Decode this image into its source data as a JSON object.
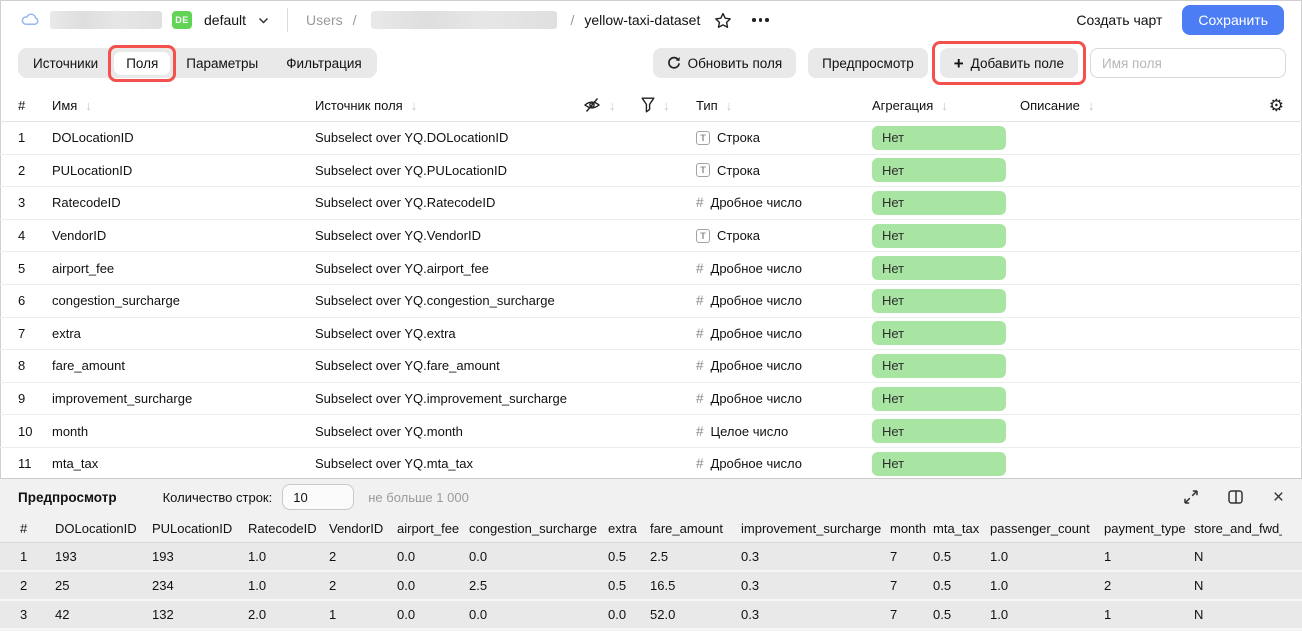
{
  "colors": {
    "accent_blue": "#4c7df5",
    "badge_green": "#a8e5a3",
    "highlight_red": "#f4514e",
    "env_green": "#62d455"
  },
  "header": {
    "env_badge": "DE",
    "env_name": "default",
    "breadcrumb": {
      "root": "Users",
      "sep": "/",
      "current": "yellow-taxi-dataset"
    },
    "create_chart": "Создать чарт",
    "save": "Сохранить"
  },
  "tabs": [
    {
      "label": "Источники",
      "active": false
    },
    {
      "label": "Поля",
      "active": true,
      "highlighted": true
    },
    {
      "label": "Параметры",
      "active": false
    },
    {
      "label": "Фильтрация",
      "active": false
    }
  ],
  "toolbar": {
    "refresh": "Обновить поля",
    "preview": "Предпросмотр",
    "add_field": "Добавить поле",
    "name_placeholder": "Имя поля"
  },
  "fields": {
    "headers": {
      "num": "#",
      "name": "Имя",
      "source": "Источник поля",
      "type": "Тип",
      "aggregation": "Агрегация",
      "description": "Описание"
    },
    "rows": [
      {
        "num": "1",
        "name": "DOLocationID",
        "source": "Subselect over YQ.DOLocationID",
        "type_kind": "string",
        "type": "Строка",
        "aggregation": "Нет"
      },
      {
        "num": "2",
        "name": "PULocationID",
        "source": "Subselect over YQ.PULocationID",
        "type_kind": "string",
        "type": "Строка",
        "aggregation": "Нет"
      },
      {
        "num": "3",
        "name": "RatecodeID",
        "source": "Subselect over YQ.RatecodeID",
        "type_kind": "number",
        "type": "Дробное число",
        "aggregation": "Нет"
      },
      {
        "num": "4",
        "name": "VendorID",
        "source": "Subselect over YQ.VendorID",
        "type_kind": "string",
        "type": "Строка",
        "aggregation": "Нет"
      },
      {
        "num": "5",
        "name": "airport_fee",
        "source": "Subselect over YQ.airport_fee",
        "type_kind": "number",
        "type": "Дробное число",
        "aggregation": "Нет"
      },
      {
        "num": "6",
        "name": "congestion_surcharge",
        "source": "Subselect over YQ.congestion_surcharge",
        "type_kind": "number",
        "type": "Дробное число",
        "aggregation": "Нет"
      },
      {
        "num": "7",
        "name": "extra",
        "source": "Subselect over YQ.extra",
        "type_kind": "number",
        "type": "Дробное число",
        "aggregation": "Нет"
      },
      {
        "num": "8",
        "name": "fare_amount",
        "source": "Subselect over YQ.fare_amount",
        "type_kind": "number",
        "type": "Дробное число",
        "aggregation": "Нет"
      },
      {
        "num": "9",
        "name": "improvement_surcharge",
        "source": "Subselect over YQ.improvement_surcharge",
        "type_kind": "number",
        "type": "Дробное число",
        "aggregation": "Нет"
      },
      {
        "num": "10",
        "name": "month",
        "source": "Subselect over YQ.month",
        "type_kind": "number",
        "type": "Целое число",
        "aggregation": "Нет"
      },
      {
        "num": "11",
        "name": "mta_tax",
        "source": "Subselect over YQ.mta_tax",
        "type_kind": "number",
        "type": "Дробное число",
        "aggregation": "Нет"
      }
    ]
  },
  "preview": {
    "title": "Предпросмотр",
    "rows_label": "Количество строк:",
    "rows_value": "10",
    "hint": "не больше 1 000",
    "table": {
      "headers": [
        "#",
        "DOLocationID",
        "PULocationID",
        "RatecodeID",
        "VendorID",
        "airport_fee",
        "congestion_surcharge",
        "extra",
        "fare_amount",
        "improvement_surcharge",
        "month",
        "mta_tax",
        "passenger_count",
        "payment_type",
        "store_and_fwd_flag"
      ],
      "rows": [
        [
          "1",
          "193",
          "193",
          "1.0",
          "2",
          "0.0",
          "0.0",
          "0.5",
          "2.5",
          "0.3",
          "7",
          "0.5",
          "1.0",
          "1",
          "N"
        ],
        [
          "2",
          "25",
          "234",
          "1.0",
          "2",
          "0.0",
          "2.5",
          "0.5",
          "16.5",
          "0.3",
          "7",
          "0.5",
          "1.0",
          "2",
          "N"
        ],
        [
          "3",
          "42",
          "132",
          "2.0",
          "1",
          "0.0",
          "0.0",
          "0.0",
          "52.0",
          "0.3",
          "7",
          "0.5",
          "1.0",
          "1",
          "N"
        ]
      ]
    }
  },
  "icons": {
    "sort": "↓",
    "gear": "⚙",
    "close": "×",
    "plus": "+",
    "string_type": "T",
    "number_type": "#"
  }
}
